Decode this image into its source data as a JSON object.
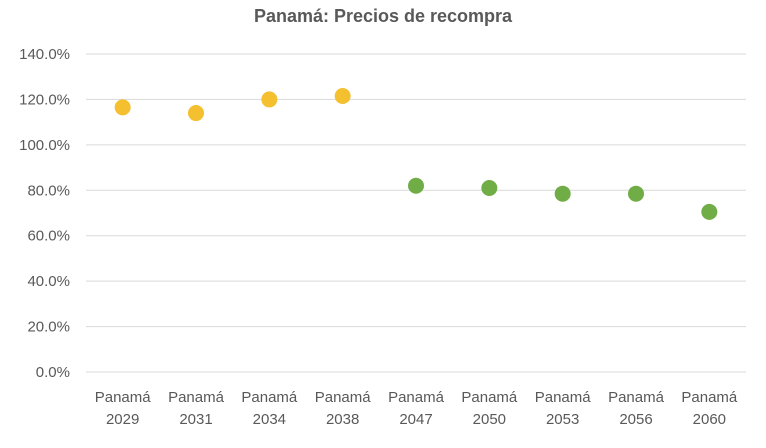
{
  "chart_data": {
    "type": "scatter",
    "title": "Panamá: Precios de recompra",
    "xlabel": "",
    "ylabel": "",
    "y_ticks": [
      "0.0%",
      "20.0%",
      "40.0%",
      "60.0%",
      "80.0%",
      "100.0%",
      "120.0%",
      "140.0%"
    ],
    "ylim": [
      0,
      140
    ],
    "grid": true,
    "categories": [
      [
        "Panamá",
        "2029"
      ],
      [
        "Panamá",
        "2031"
      ],
      [
        "Panamá",
        "2034"
      ],
      [
        "Panamá",
        "2038"
      ],
      [
        "Panamá",
        "2047"
      ],
      [
        "Panamá",
        "2050"
      ],
      [
        "Panamá",
        "2053"
      ],
      [
        "Panamá",
        "2056"
      ],
      [
        "Panamá",
        "2060"
      ]
    ],
    "values": [
      116.5,
      114.0,
      120.0,
      121.5,
      82.0,
      81.0,
      78.5,
      78.5,
      70.5
    ],
    "point_colors": [
      "#f4c030",
      "#f4c030",
      "#f4c030",
      "#f4c030",
      "#70ad47",
      "#70ad47",
      "#70ad47",
      "#70ad47",
      "#70ad47"
    ]
  }
}
